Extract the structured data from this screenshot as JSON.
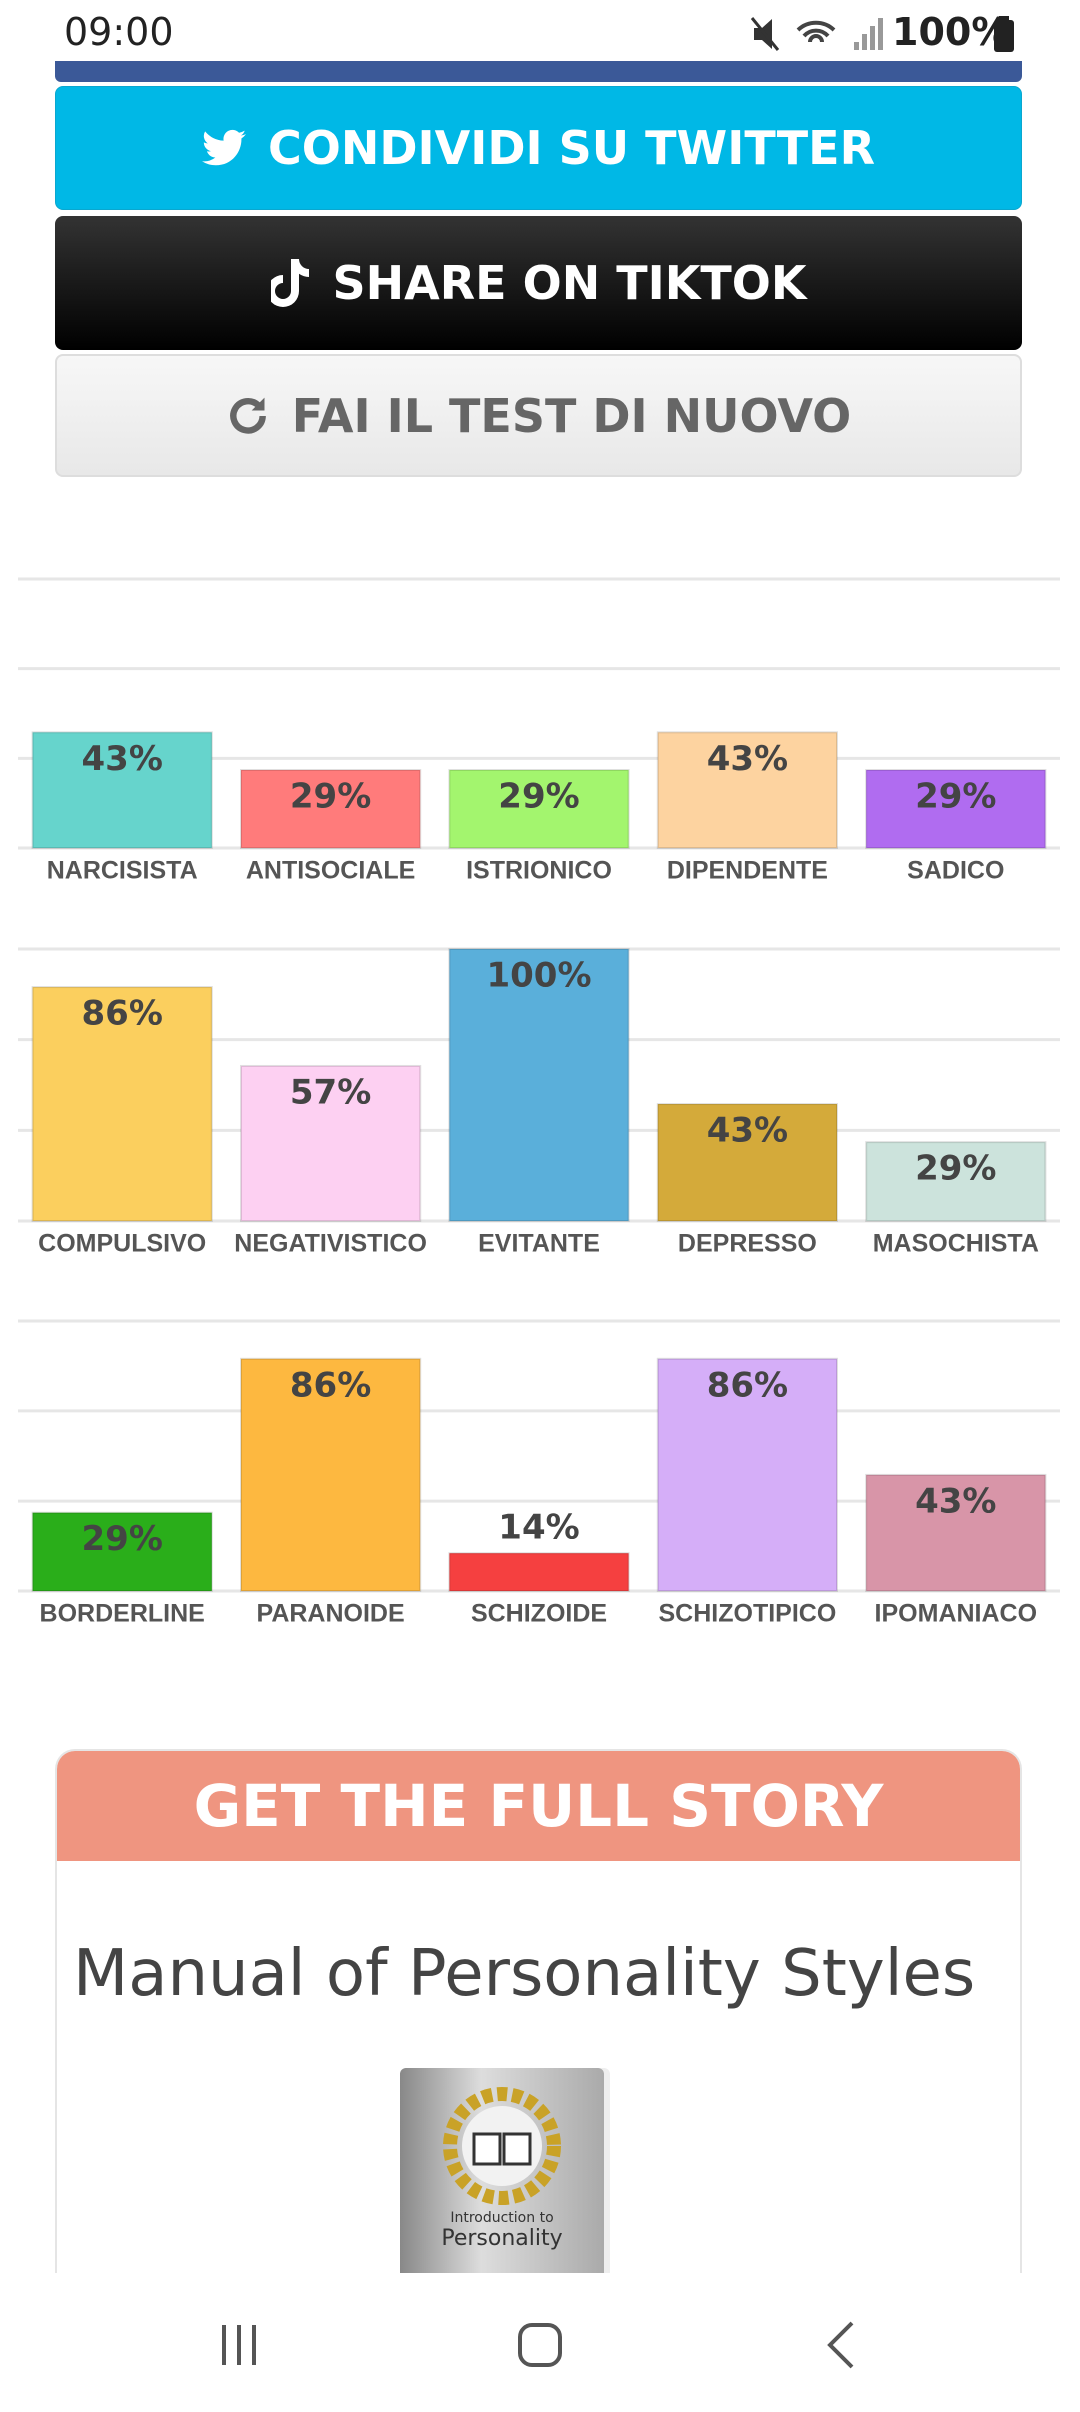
{
  "status_bar": {
    "time": "09:00",
    "battery": "100%"
  },
  "buttons": [
    "CONDIVIDI SU TWITTER",
    "SHARE ON TIKTOK",
    "FAI IL TEST DI NUOVO"
  ],
  "chart_data": [
    {
      "type": "bar",
      "categories": [
        "NARCISISTA",
        "ANTISOCIALE",
        "ISTRIONICO",
        "DIPENDENTE",
        "SADICO"
      ],
      "values": [
        43,
        29,
        29,
        43,
        29
      ],
      "value_labels": [
        "43%",
        "29%",
        "29%",
        "43%",
        "29%"
      ],
      "colors": [
        "#66d4cc",
        "#ff7b7b",
        "#a3f56e",
        "#fdd3a0",
        "#b06cf0"
      ],
      "ylim": [
        0,
        100
      ],
      "yticks": [
        0,
        33.3,
        66.7,
        100
      ],
      "grid": true
    },
    {
      "type": "bar",
      "categories": [
        "COMPULSIVO",
        "NEGATIVISTICO",
        "EVITANTE",
        "DEPRESSO",
        "MASOCHISTA"
      ],
      "values": [
        86,
        57,
        100,
        43,
        29
      ],
      "value_labels": [
        "86%",
        "57%",
        "100%",
        "43%",
        "29%"
      ],
      "colors": [
        "#fbcf5e",
        "#fdd0f2",
        "#5aafda",
        "#d4aa3a",
        "#cce3dc"
      ],
      "ylim": [
        0,
        100
      ],
      "yticks": [
        0,
        33.3,
        66.7,
        100
      ],
      "grid": true
    },
    {
      "type": "bar",
      "categories": [
        "BORDERLINE",
        "PARANOIDE",
        "SCHIZOIDE",
        "SCHIZOTIPICO",
        "IPOMANIACO"
      ],
      "values": [
        29,
        86,
        14,
        86,
        43
      ],
      "value_labels": [
        "29%",
        "86%",
        "14%",
        "86%",
        "43%"
      ],
      "colors": [
        "#2aae1a",
        "#fdb840",
        "#f54040",
        "#d5aef8",
        "#d895a8"
      ],
      "ylim": [
        0,
        100
      ],
      "yticks": [
        0,
        33.3,
        66.7,
        100
      ],
      "grid": true
    }
  ],
  "promo": {
    "heading": "GET THE FULL STORY",
    "title": "Manual of Personality Styles",
    "book_cover": [
      "Introduction to",
      "Personality"
    ]
  }
}
